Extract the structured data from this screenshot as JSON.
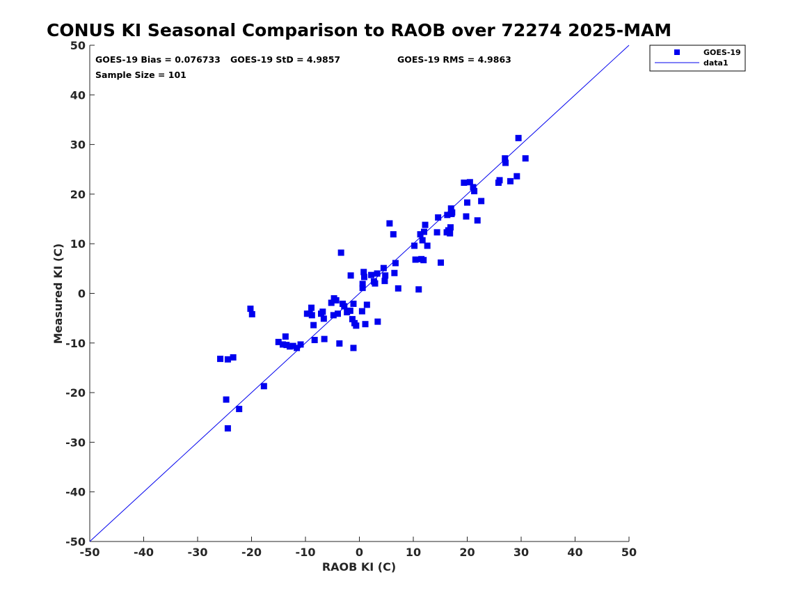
{
  "chart_data": {
    "type": "scatter",
    "title": "CONUS KI Seasonal Comparison to RAOB over 72274 2025-MAM",
    "xlabel": "RAOB KI (C)",
    "ylabel": "Measured KI (C)",
    "xlim": [
      -50,
      50
    ],
    "ylim": [
      -50,
      50
    ],
    "xticks": [
      "-50",
      "-40",
      "-30",
      "-20",
      "-10",
      "0",
      "10",
      "20",
      "30",
      "40",
      "50"
    ],
    "yticks": [
      "50",
      "40",
      "30",
      "20",
      "10",
      "0",
      "-10",
      "-20",
      "-30",
      "-40",
      "-50"
    ],
    "grid": false,
    "stats": {
      "bias": "GOES-19 Bias = 0.076733",
      "std": "GOES-19 StD = 4.9857",
      "rms": "GOES-19 RMS = 4.9863",
      "sample_size": "Sample Size = 101"
    },
    "legend": {
      "position": "top-right-outside",
      "entries": [
        "GOES-19",
        "data1"
      ]
    },
    "colors": {
      "marker": "#0000ee",
      "line": "#0000ee"
    },
    "series": [
      {
        "name": "GOES-19",
        "marker": "square",
        "points": [
          [
            -25.8,
            -13.2
          ],
          [
            -24.4,
            -13.3
          ],
          [
            -23.4,
            -12.9
          ],
          [
            -24.7,
            -21.4
          ],
          [
            -24.4,
            -27.2
          ],
          [
            -22.3,
            -23.3
          ],
          [
            -17.7,
            -18.7
          ],
          [
            -20.2,
            -3.1
          ],
          [
            -19.9,
            -4.2
          ],
          [
            -15.0,
            -9.8
          ],
          [
            -14.2,
            -10.3
          ],
          [
            -13.7,
            -8.7
          ],
          [
            -13.5,
            -10.4
          ],
          [
            -12.9,
            -10.7
          ],
          [
            -12.3,
            -10.6
          ],
          [
            -11.6,
            -11.0
          ],
          [
            -10.9,
            -10.3
          ],
          [
            -9.7,
            -4.1
          ],
          [
            -9.2,
            -4.1
          ],
          [
            -8.9,
            -2.9
          ],
          [
            -8.8,
            -4.4
          ],
          [
            -8.5,
            -6.4
          ],
          [
            -8.3,
            -9.4
          ],
          [
            -7.1,
            -4.1
          ],
          [
            -6.8,
            -3.7
          ],
          [
            -6.6,
            -5.1
          ],
          [
            -6.5,
            -9.2
          ],
          [
            -5.2,
            -1.9
          ],
          [
            -4.8,
            -4.4
          ],
          [
            -4.7,
            -1.0
          ],
          [
            -4.3,
            -1.4
          ],
          [
            -4.0,
            -4.1
          ],
          [
            -3.7,
            -10.1
          ],
          [
            -3.4,
            8.2
          ],
          [
            -3.1,
            -2.1
          ],
          [
            -2.8,
            -2.6
          ],
          [
            -2.3,
            -3.8
          ],
          [
            -1.7,
            -3.5
          ],
          [
            -1.6,
            3.6
          ],
          [
            -1.3,
            -5.2
          ],
          [
            -1.1,
            -11.0
          ],
          [
            -1.1,
            -2.1
          ],
          [
            -0.9,
            -6.0
          ],
          [
            -0.6,
            -6.5
          ],
          [
            0.5,
            -3.6
          ],
          [
            0.6,
            1.1
          ],
          [
            0.6,
            1.9
          ],
          [
            0.8,
            4.3
          ],
          [
            0.9,
            3.3
          ],
          [
            1.1,
            -6.2
          ],
          [
            1.4,
            -2.3
          ],
          [
            2.2,
            3.7
          ],
          [
            2.7,
            2.4
          ],
          [
            2.9,
            2.0
          ],
          [
            3.3,
            4.0
          ],
          [
            3.4,
            -5.7
          ],
          [
            4.5,
            5.1
          ],
          [
            4.7,
            2.5
          ],
          [
            4.8,
            3.6
          ],
          [
            5.6,
            14.1
          ],
          [
            6.3,
            11.9
          ],
          [
            6.5,
            4.1
          ],
          [
            6.7,
            6.1
          ],
          [
            7.2,
            1.0
          ],
          [
            10.2,
            9.6
          ],
          [
            10.4,
            6.8
          ],
          [
            11.0,
            0.8
          ],
          [
            11.3,
            11.9
          ],
          [
            11.5,
            6.9
          ],
          [
            11.7,
            10.7
          ],
          [
            11.9,
            6.7
          ],
          [
            12.0,
            12.4
          ],
          [
            12.2,
            13.8
          ],
          [
            12.6,
            9.6
          ],
          [
            14.4,
            12.3
          ],
          [
            14.6,
            15.3
          ],
          [
            15.1,
            6.2
          ],
          [
            16.2,
            12.3
          ],
          [
            16.3,
            15.8
          ],
          [
            16.5,
            12.7
          ],
          [
            16.8,
            12.1
          ],
          [
            16.9,
            13.3
          ],
          [
            17.0,
            17.1
          ],
          [
            17.1,
            16.0
          ],
          [
            19.4,
            22.3
          ],
          [
            19.8,
            15.5
          ],
          [
            20.0,
            18.3
          ],
          [
            20.5,
            22.4
          ],
          [
            21.1,
            21.4
          ],
          [
            21.3,
            20.6
          ],
          [
            21.9,
            14.7
          ],
          [
            22.6,
            18.6
          ],
          [
            25.8,
            22.3
          ],
          [
            26.0,
            22.8
          ],
          [
            27.0,
            27.2
          ],
          [
            27.1,
            26.3
          ],
          [
            28.0,
            22.6
          ],
          [
            29.2,
            23.6
          ],
          [
            29.5,
            31.3
          ],
          [
            30.8,
            27.2
          ],
          [
            17.2,
            16.3
          ]
        ]
      },
      {
        "name": "data1",
        "type": "line",
        "x": [
          -50,
          50
        ],
        "y": [
          -50,
          50
        ]
      }
    ]
  }
}
